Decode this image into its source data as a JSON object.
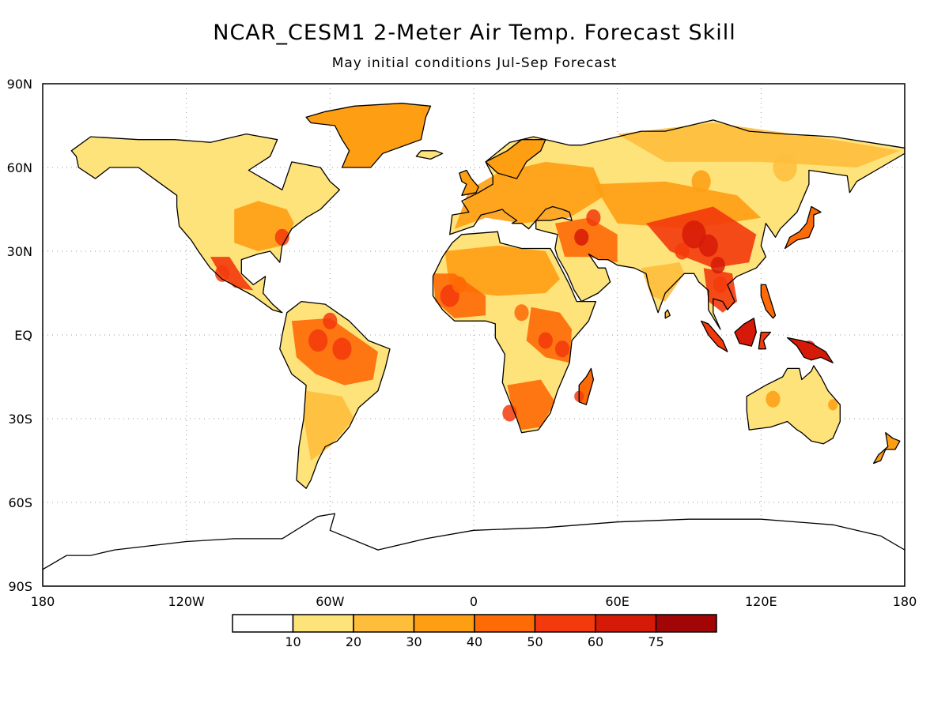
{
  "title": "NCAR_CESM1 2-Meter Air Temp. Forecast Skill",
  "subtitle": "May initial conditions   Jul-Sep Forecast",
  "map": {
    "projection": "cylindrical equidistant",
    "lon_range": [
      -180,
      180
    ],
    "lat_range": [
      -90,
      90
    ],
    "grid": true,
    "lat_ticks": [
      {
        "value": 90,
        "label": "90N"
      },
      {
        "value": 60,
        "label": "60N"
      },
      {
        "value": 30,
        "label": "30N"
      },
      {
        "value": 0,
        "label": "EQ"
      },
      {
        "value": -30,
        "label": "30S"
      },
      {
        "value": -60,
        "label": "60S"
      },
      {
        "value": -90,
        "label": "90S"
      }
    ],
    "lon_ticks": [
      {
        "value": -180,
        "label": "180"
      },
      {
        "value": -120,
        "label": "120W"
      },
      {
        "value": -60,
        "label": "60W"
      },
      {
        "value": 0,
        "label": "0"
      },
      {
        "value": 60,
        "label": "60E"
      },
      {
        "value": 120,
        "label": "120E"
      },
      {
        "value": 180,
        "label": "180"
      }
    ]
  },
  "colorbar": {
    "boundaries": [
      "10",
      "20",
      "30",
      "40",
      "50",
      "60",
      "75"
    ],
    "colors": [
      "#ffffff",
      "#fee27a",
      "#febe3c",
      "#fe9e13",
      "#fe6a06",
      "#f33a0c",
      "#d61a08",
      "#a10505"
    ]
  },
  "regions": [
    {
      "name": "greenland",
      "level": 3
    },
    {
      "name": "north-america",
      "level": 1
    },
    {
      "name": "eastern-us",
      "level": 3
    },
    {
      "name": "mexico",
      "level": 5
    },
    {
      "name": "amazon",
      "level": 4
    },
    {
      "name": "southern-south-america",
      "level": 2
    },
    {
      "name": "sahara-sahel",
      "level": 3
    },
    {
      "name": "west-africa",
      "level": 4
    },
    {
      "name": "east-africa",
      "level": 4
    },
    {
      "name": "southern-africa",
      "level": 4
    },
    {
      "name": "madagascar",
      "level": 4
    },
    {
      "name": "europe",
      "level": 3
    },
    {
      "name": "siberia",
      "level": 2
    },
    {
      "name": "middle-east",
      "level": 4
    },
    {
      "name": "central-asia",
      "level": 3
    },
    {
      "name": "tibet-china",
      "level": 5
    },
    {
      "name": "india",
      "level": 2
    },
    {
      "name": "southeast-asia",
      "level": 5
    },
    {
      "name": "borneo",
      "level": 6
    },
    {
      "name": "new-guinea",
      "level": 6
    },
    {
      "name": "australia",
      "level": 1
    },
    {
      "name": "japan",
      "level": 4
    },
    {
      "name": "new-zealand",
      "level": 3
    }
  ]
}
